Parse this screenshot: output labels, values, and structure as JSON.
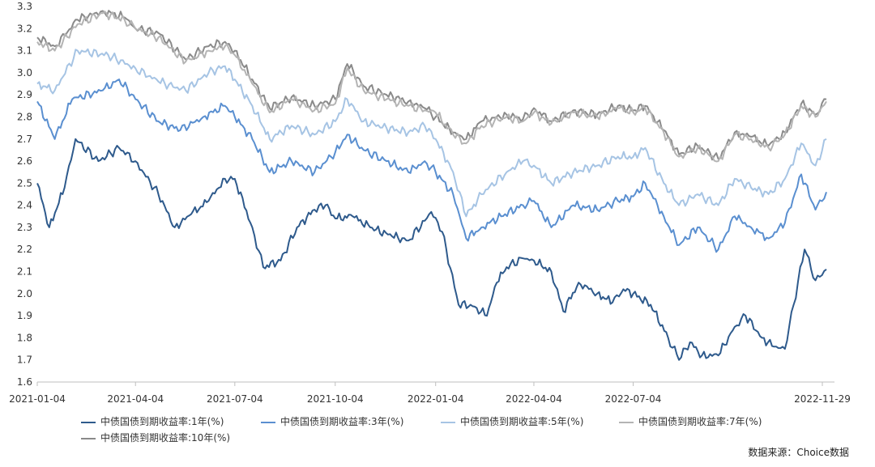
{
  "chart_data": {
    "type": "line",
    "x_ticks": [
      "2021-01-04",
      "2021-04-04",
      "2021-07-04",
      "2021-10-04",
      "2022-01-04",
      "2022-04-04",
      "2022-07-04",
      "2022-11-29"
    ],
    "y_ticks": [
      "1.6",
      "1.7",
      "1.8",
      "1.9",
      "2.0",
      "2.1",
      "2.2",
      "2.3",
      "2.4",
      "2.5",
      "2.6",
      "2.7",
      "2.8",
      "2.9",
      "3.0",
      "3.1",
      "3.2",
      "3.3"
    ],
    "ylim": [
      1.6,
      3.3
    ],
    "grid": false,
    "legend_position": "bottom",
    "series": [
      {
        "name": "中债国债到期收益率:1年(%)",
        "color": "#2e5a8c",
        "points": [
          [
            "2021-01-04",
            2.5
          ],
          [
            "2021-01-15",
            2.3
          ],
          [
            "2021-01-29",
            2.48
          ],
          [
            "2021-02-08",
            2.7
          ],
          [
            "2021-03-01",
            2.6
          ],
          [
            "2021-03-20",
            2.66
          ],
          [
            "2021-04-04",
            2.6
          ],
          [
            "2021-04-25",
            2.45
          ],
          [
            "2021-05-10",
            2.3
          ],
          [
            "2021-05-25",
            2.36
          ],
          [
            "2021-06-10",
            2.42
          ],
          [
            "2021-06-25",
            2.52
          ],
          [
            "2021-07-04",
            2.52
          ],
          [
            "2021-07-20",
            2.3
          ],
          [
            "2021-07-30",
            2.12
          ],
          [
            "2021-08-15",
            2.15
          ],
          [
            "2021-08-30",
            2.3
          ],
          [
            "2021-09-15",
            2.38
          ],
          [
            "2021-09-25",
            2.4
          ],
          [
            "2021-10-04",
            2.34
          ],
          [
            "2021-10-20",
            2.35
          ],
          [
            "2021-11-05",
            2.3
          ],
          [
            "2021-11-25",
            2.26
          ],
          [
            "2021-12-10",
            2.24
          ],
          [
            "2021-12-25",
            2.33
          ],
          [
            "2021-12-31",
            2.37
          ],
          [
            "2022-01-10",
            2.28
          ],
          [
            "2022-01-25",
            1.95
          ],
          [
            "2022-02-05",
            1.95
          ],
          [
            "2022-02-20",
            1.9
          ],
          [
            "2022-03-01",
            2.05
          ],
          [
            "2022-03-10",
            2.12
          ],
          [
            "2022-03-25",
            2.16
          ],
          [
            "2022-04-04",
            2.15
          ],
          [
            "2022-04-20",
            2.1
          ],
          [
            "2022-05-01",
            1.92
          ],
          [
            "2022-05-15",
            2.05
          ],
          [
            "2022-06-01",
            2.0
          ],
          [
            "2022-06-15",
            1.96
          ],
          [
            "2022-06-25",
            2.02
          ],
          [
            "2022-07-04",
            2.0
          ],
          [
            "2022-07-20",
            1.95
          ],
          [
            "2022-08-05",
            1.8
          ],
          [
            "2022-08-15",
            1.7
          ],
          [
            "2022-08-25",
            1.78
          ],
          [
            "2022-09-05",
            1.72
          ],
          [
            "2022-09-20",
            1.72
          ],
          [
            "2022-10-05",
            1.85
          ],
          [
            "2022-10-15",
            1.9
          ],
          [
            "2022-10-30",
            1.8
          ],
          [
            "2022-11-10",
            1.76
          ],
          [
            "2022-11-20",
            1.75
          ],
          [
            "2022-11-28",
            1.95
          ],
          [
            "2022-12-08",
            2.2
          ],
          [
            "2022-12-18",
            2.06
          ],
          [
            "2022-12-28",
            2.11
          ]
        ]
      },
      {
        "name": "中债国债到期收益率:3年(%)",
        "color": "#5a8fd0",
        "points": [
          [
            "2021-01-04",
            2.87
          ],
          [
            "2021-01-20",
            2.7
          ],
          [
            "2021-02-05",
            2.88
          ],
          [
            "2021-03-05",
            2.92
          ],
          [
            "2021-03-20",
            2.97
          ],
          [
            "2021-04-04",
            2.88
          ],
          [
            "2021-04-25",
            2.78
          ],
          [
            "2021-05-15",
            2.74
          ],
          [
            "2021-06-05",
            2.8
          ],
          [
            "2021-06-25",
            2.85
          ],
          [
            "2021-07-04",
            2.8
          ],
          [
            "2021-07-20",
            2.7
          ],
          [
            "2021-08-05",
            2.55
          ],
          [
            "2021-08-25",
            2.6
          ],
          [
            "2021-09-15",
            2.55
          ],
          [
            "2021-10-04",
            2.64
          ],
          [
            "2021-10-15",
            2.72
          ],
          [
            "2021-10-30",
            2.65
          ],
          [
            "2021-11-20",
            2.6
          ],
          [
            "2021-12-10",
            2.55
          ],
          [
            "2021-12-25",
            2.6
          ],
          [
            "2022-01-04",
            2.55
          ],
          [
            "2022-01-20",
            2.45
          ],
          [
            "2022-02-01",
            2.25
          ],
          [
            "2022-02-15",
            2.3
          ],
          [
            "2022-03-05",
            2.35
          ],
          [
            "2022-03-25",
            2.4
          ],
          [
            "2022-04-04",
            2.42
          ],
          [
            "2022-04-20",
            2.3
          ],
          [
            "2022-05-10",
            2.4
          ],
          [
            "2022-06-01",
            2.38
          ],
          [
            "2022-06-20",
            2.42
          ],
          [
            "2022-07-04",
            2.44
          ],
          [
            "2022-07-15",
            2.5
          ],
          [
            "2022-08-01",
            2.35
          ],
          [
            "2022-08-15",
            2.22
          ],
          [
            "2022-09-01",
            2.3
          ],
          [
            "2022-09-20",
            2.2
          ],
          [
            "2022-10-05",
            2.35
          ],
          [
            "2022-10-20",
            2.3
          ],
          [
            "2022-11-05",
            2.25
          ],
          [
            "2022-11-20",
            2.32
          ],
          [
            "2022-12-05",
            2.54
          ],
          [
            "2022-12-18",
            2.38
          ],
          [
            "2022-12-28",
            2.46
          ]
        ]
      },
      {
        "name": "中债国债到期收益率:5年(%)",
        "color": "#a6c4e4",
        "points": [
          [
            "2021-01-04",
            2.95
          ],
          [
            "2021-01-20",
            2.92
          ],
          [
            "2021-02-10",
            3.1
          ],
          [
            "2021-03-10",
            3.08
          ],
          [
            "2021-04-04",
            3.02
          ],
          [
            "2021-04-25",
            2.96
          ],
          [
            "2021-05-20",
            2.92
          ],
          [
            "2021-06-10",
            3.0
          ],
          [
            "2021-06-25",
            3.03
          ],
          [
            "2021-07-04",
            2.97
          ],
          [
            "2021-07-20",
            2.85
          ],
          [
            "2021-08-05",
            2.7
          ],
          [
            "2021-08-25",
            2.76
          ],
          [
            "2021-09-15",
            2.72
          ],
          [
            "2021-10-04",
            2.78
          ],
          [
            "2021-10-15",
            2.88
          ],
          [
            "2021-10-30",
            2.78
          ],
          [
            "2021-11-20",
            2.75
          ],
          [
            "2021-12-10",
            2.73
          ],
          [
            "2021-12-25",
            2.76
          ],
          [
            "2022-01-04",
            2.7
          ],
          [
            "2022-01-20",
            2.55
          ],
          [
            "2022-02-01",
            2.35
          ],
          [
            "2022-02-15",
            2.45
          ],
          [
            "2022-03-10",
            2.55
          ],
          [
            "2022-03-25",
            2.6
          ],
          [
            "2022-04-04",
            2.58
          ],
          [
            "2022-04-20",
            2.5
          ],
          [
            "2022-05-10",
            2.55
          ],
          [
            "2022-06-01",
            2.58
          ],
          [
            "2022-06-20",
            2.62
          ],
          [
            "2022-07-04",
            2.62
          ],
          [
            "2022-07-15",
            2.66
          ],
          [
            "2022-08-01",
            2.5
          ],
          [
            "2022-08-15",
            2.4
          ],
          [
            "2022-09-01",
            2.45
          ],
          [
            "2022-09-20",
            2.4
          ],
          [
            "2022-10-05",
            2.52
          ],
          [
            "2022-10-20",
            2.48
          ],
          [
            "2022-11-05",
            2.45
          ],
          [
            "2022-11-20",
            2.52
          ],
          [
            "2022-12-05",
            2.68
          ],
          [
            "2022-12-18",
            2.58
          ],
          [
            "2022-12-28",
            2.7
          ]
        ]
      },
      {
        "name": "中债国债到期收益率:7年(%)",
        "color": "#b4b4b4",
        "points": [
          [
            "2021-01-04",
            3.14
          ],
          [
            "2021-01-20",
            3.1
          ],
          [
            "2021-02-10",
            3.22
          ],
          [
            "2021-03-05",
            3.27
          ],
          [
            "2021-03-25",
            3.24
          ],
          [
            "2021-04-04",
            3.2
          ],
          [
            "2021-04-25",
            3.16
          ],
          [
            "2021-05-20",
            3.05
          ],
          [
            "2021-06-10",
            3.1
          ],
          [
            "2021-06-25",
            3.12
          ],
          [
            "2021-07-04",
            3.08
          ],
          [
            "2021-07-20",
            2.95
          ],
          [
            "2021-08-05",
            2.82
          ],
          [
            "2021-08-25",
            2.88
          ],
          [
            "2021-09-15",
            2.83
          ],
          [
            "2021-10-04",
            2.86
          ],
          [
            "2021-10-15",
            3.02
          ],
          [
            "2021-10-30",
            2.92
          ],
          [
            "2021-11-20",
            2.88
          ],
          [
            "2021-12-10",
            2.85
          ],
          [
            "2021-12-25",
            2.83
          ],
          [
            "2022-01-04",
            2.82
          ],
          [
            "2022-01-20",
            2.72
          ],
          [
            "2022-02-01",
            2.68
          ],
          [
            "2022-02-15",
            2.76
          ],
          [
            "2022-03-10",
            2.8
          ],
          [
            "2022-03-25",
            2.78
          ],
          [
            "2022-04-04",
            2.82
          ],
          [
            "2022-04-20",
            2.77
          ],
          [
            "2022-05-10",
            2.82
          ],
          [
            "2022-06-01",
            2.8
          ],
          [
            "2022-06-20",
            2.84
          ],
          [
            "2022-07-04",
            2.82
          ],
          [
            "2022-07-15",
            2.84
          ],
          [
            "2022-08-01",
            2.73
          ],
          [
            "2022-08-15",
            2.62
          ],
          [
            "2022-09-01",
            2.66
          ],
          [
            "2022-09-20",
            2.6
          ],
          [
            "2022-10-05",
            2.72
          ],
          [
            "2022-10-20",
            2.7
          ],
          [
            "2022-11-05",
            2.66
          ],
          [
            "2022-11-20",
            2.72
          ],
          [
            "2022-12-05",
            2.85
          ],
          [
            "2022-12-18",
            2.8
          ],
          [
            "2022-12-28",
            2.87
          ]
        ]
      },
      {
        "name": "中债国债到期收益率:10年(%)",
        "color": "#8a8a8a",
        "points": [
          [
            "2021-01-04",
            3.16
          ],
          [
            "2021-01-20",
            3.12
          ],
          [
            "2021-02-10",
            3.24
          ],
          [
            "2021-03-05",
            3.28
          ],
          [
            "2021-03-25",
            3.25
          ],
          [
            "2021-04-04",
            3.2
          ],
          [
            "2021-04-25",
            3.18
          ],
          [
            "2021-05-20",
            3.06
          ],
          [
            "2021-06-10",
            3.12
          ],
          [
            "2021-06-25",
            3.14
          ],
          [
            "2021-07-04",
            3.1
          ],
          [
            "2021-07-20",
            2.97
          ],
          [
            "2021-08-05",
            2.84
          ],
          [
            "2021-08-25",
            2.89
          ],
          [
            "2021-09-15",
            2.85
          ],
          [
            "2021-10-04",
            2.88
          ],
          [
            "2021-10-15",
            3.04
          ],
          [
            "2021-10-30",
            2.94
          ],
          [
            "2021-11-20",
            2.9
          ],
          [
            "2021-12-10",
            2.87
          ],
          [
            "2021-12-25",
            2.84
          ],
          [
            "2022-01-04",
            2.8
          ],
          [
            "2022-01-20",
            2.73
          ],
          [
            "2022-02-01",
            2.7
          ],
          [
            "2022-02-15",
            2.78
          ],
          [
            "2022-03-10",
            2.81
          ],
          [
            "2022-03-25",
            2.79
          ],
          [
            "2022-04-04",
            2.84
          ],
          [
            "2022-04-20",
            2.78
          ],
          [
            "2022-05-10",
            2.83
          ],
          [
            "2022-06-01",
            2.81
          ],
          [
            "2022-06-20",
            2.85
          ],
          [
            "2022-07-04",
            2.83
          ],
          [
            "2022-07-15",
            2.85
          ],
          [
            "2022-08-01",
            2.74
          ],
          [
            "2022-08-15",
            2.63
          ],
          [
            "2022-09-01",
            2.67
          ],
          [
            "2022-09-20",
            2.61
          ],
          [
            "2022-10-05",
            2.73
          ],
          [
            "2022-10-20",
            2.71
          ],
          [
            "2022-11-05",
            2.67
          ],
          [
            "2022-11-20",
            2.73
          ],
          [
            "2022-12-05",
            2.86
          ],
          [
            "2022-12-18",
            2.81
          ],
          [
            "2022-12-28",
            2.88
          ]
        ]
      }
    ]
  },
  "source_note": "数据来源：Choice数据"
}
